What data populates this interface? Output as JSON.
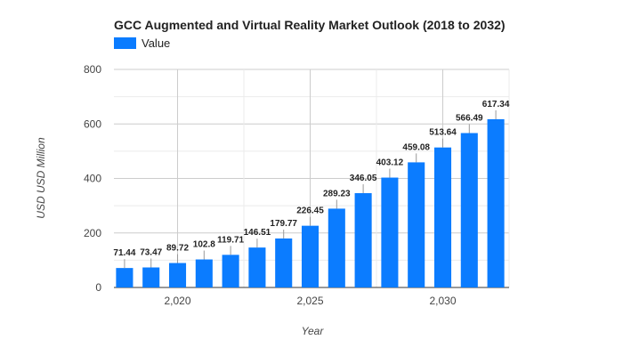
{
  "chart_data": {
    "type": "bar",
    "title": "GCC Augmented and Virtual Reality Market Outlook (2018 to 2032)",
    "xlabel": "Year",
    "ylabel": "USD USD Million",
    "legend": {
      "position": "top-left",
      "entries": [
        "Value"
      ]
    },
    "grid": true,
    "ylim": [
      0,
      800
    ],
    "yticks": [
      0,
      200,
      400,
      600,
      800
    ],
    "xticks": [
      2020,
      2025,
      2030
    ],
    "xtick_labels": [
      "2,020",
      "2,025",
      "2,030"
    ],
    "xlim": [
      2017.6,
      2032.5
    ],
    "color": "#0b7cff",
    "series": [
      {
        "name": "Value",
        "x": [
          2018,
          2019,
          2020,
          2021,
          2022,
          2023,
          2024,
          2025,
          2026,
          2027,
          2028,
          2029,
          2030,
          2031,
          2032
        ],
        "values": [
          71.44,
          73.47,
          89.72,
          102.8,
          119.71,
          146.51,
          179.77,
          226.45,
          289.23,
          346.05,
          403.12,
          459.08,
          513.64,
          566.49,
          617.34
        ],
        "labels": [
          "71.44",
          "73.47",
          "89.72",
          "102.8",
          "119.71",
          "146.51",
          "179.77",
          "226.45",
          "289.23",
          "346.05",
          "403.12",
          "459.08",
          "513.64",
          "566.49",
          "617.34"
        ]
      }
    ]
  }
}
